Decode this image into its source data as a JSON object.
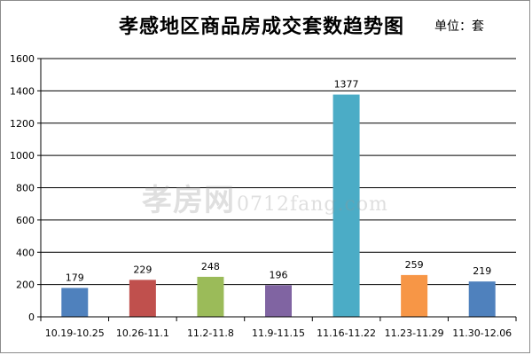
{
  "chart_data": {
    "type": "bar",
    "title": "孝感地区商品房成交套数趋势图",
    "unit_label": "单位：套",
    "categories": [
      "10.19-10.25",
      "10.26-11.1",
      "11.2-11.8",
      "11.9-11.15",
      "11.16-11.22",
      "11.23-11.29",
      "11.30-12.06"
    ],
    "values": [
      179,
      229,
      248,
      196,
      1377,
      259,
      219
    ],
    "bar_colors": [
      "#4f81bd",
      "#c0504d",
      "#9bbb59",
      "#8064a2",
      "#4bacc6",
      "#f79646",
      "#4f81bd"
    ],
    "ylim": [
      0,
      1600
    ],
    "yticks": [
      0,
      200,
      400,
      600,
      800,
      1000,
      1200,
      1400,
      1600
    ],
    "grid": true,
    "xlabel": "",
    "ylabel": ""
  },
  "watermark": {
    "logo_text": "孝房网",
    "site_text": "0712fang.com"
  }
}
